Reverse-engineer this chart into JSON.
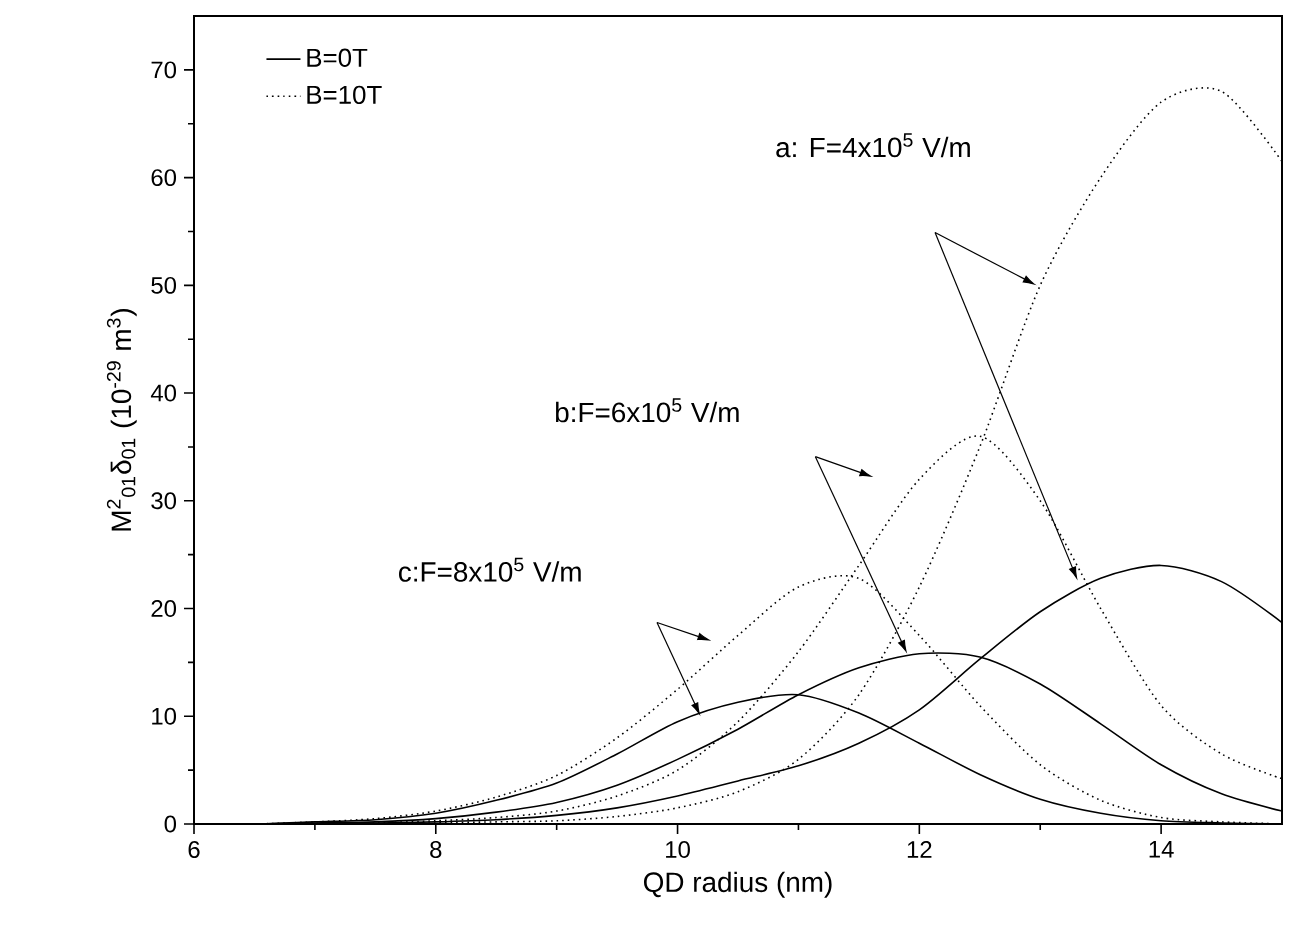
{
  "chart_data": {
    "type": "line",
    "xlabel": "QD radius (nm)",
    "ylabel": "M$^{2}$$_{01}$δ$_{01}$  (10$^{-29}$ m$^{3}$)",
    "x": [
      6,
      6.5,
      7,
      7.5,
      8,
      8.5,
      9,
      9.5,
      10,
      10.5,
      11,
      11.5,
      12,
      12.5,
      13,
      13.5,
      14,
      14.5,
      15
    ],
    "series": [
      {
        "name": "B=0T",
        "color": "#000000",
        "line_style": "solid",
        "values": [
          0,
          0,
          0,
          0.1,
          0.2,
          0.4,
          0.8,
          1.5,
          2.6,
          4,
          5.4,
          7.5,
          10.6,
          15.3,
          19.7,
          22.8,
          24,
          22.5,
          18.7
        ]
      },
      {
        "color": "#000000",
        "line_style": "solid",
        "values": [
          0,
          0,
          0.1,
          0.2,
          0.5,
          1.1,
          2.0,
          3.6,
          6.0,
          8.8,
          12,
          14.5,
          15.8,
          15.5,
          13,
          9.3,
          5.5,
          2.8,
          1.2
        ]
      },
      {
        "color": "#000000",
        "line_style": "solid",
        "values": [
          0,
          0,
          0.2,
          0.4,
          1,
          2.2,
          3.8,
          6.5,
          9.5,
          11.3,
          12,
          10.3,
          7.5,
          4.6,
          2.3,
          1,
          0.3,
          0.1,
          0
        ]
      },
      {
        "name": "B=10T",
        "color": "#000000",
        "line_style": "dotted",
        "values": [
          0,
          0,
          0,
          0,
          0.1,
          0.2,
          0.3,
          0.7,
          1.5,
          3,
          6,
          12,
          22,
          35,
          50,
          60,
          67,
          68,
          61.5
        ]
      },
      {
        "color": "#000000",
        "line_style": "dotted",
        "values": [
          0,
          0,
          0,
          0.1,
          0.3,
          0.6,
          1.2,
          2.6,
          5,
          9.5,
          16,
          24,
          32,
          36,
          30,
          20,
          11,
          6.5,
          4.2
        ]
      },
      {
        "color": "#000000",
        "line_style": "dotted",
        "values": [
          0,
          0,
          0.2,
          0.5,
          1.2,
          2.5,
          4.5,
          8,
          12.5,
          17.5,
          22,
          22.8,
          17.5,
          11,
          5.5,
          2.2,
          0.6,
          0.2,
          0
        ]
      }
    ],
    "xlim": [
      6,
      15
    ],
    "ylim": [
      0,
      75
    ],
    "xticks": [
      6,
      8,
      10,
      12,
      14
    ],
    "yticks": [
      0,
      10,
      20,
      30,
      40,
      50,
      60,
      70
    ],
    "legend": "top left",
    "grid": false,
    "annotations": [
      "a: F=4x10$^{5}$ V/m",
      "b:F=6x10$^{5}$ V/m",
      "c:F=8x10$^{5}$ V/m"
    ]
  }
}
